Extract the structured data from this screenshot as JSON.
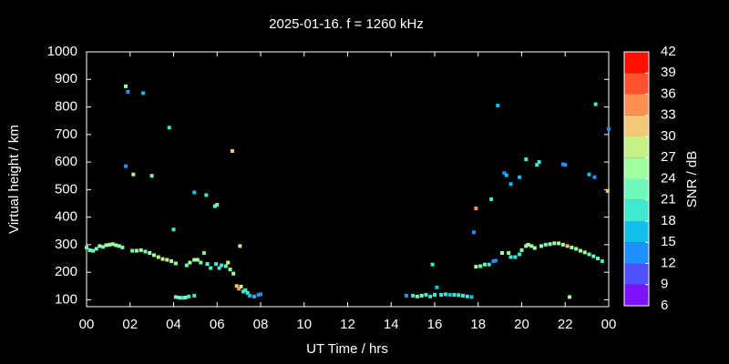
{
  "chart_data": {
    "type": "scatter",
    "title": "2025-01-16. f = 1260 kHz",
    "x_label": "UT Time / hrs",
    "y_label": "Virtual height / km",
    "xlim": [
      0,
      24
    ],
    "xticks": [
      {
        "value": 0,
        "label": "00"
      },
      {
        "value": 2,
        "label": "02"
      },
      {
        "value": 4,
        "label": "04"
      },
      {
        "value": 6,
        "label": "06"
      },
      {
        "value": 8,
        "label": "08"
      },
      10,
      12,
      14,
      16,
      18,
      20,
      22,
      {
        "value": 24,
        "label": "00"
      }
    ],
    "ylim": [
      75,
      1000
    ],
    "yticks": [
      100,
      200,
      300,
      400,
      500,
      600,
      700,
      800,
      900,
      1000
    ],
    "colorbar": {
      "label": "SNR / dB",
      "ticks": [
        6,
        9,
        12,
        15,
        18,
        21,
        24,
        27,
        30,
        33,
        36,
        39,
        42
      ],
      "colors": [
        "#8010ff",
        "#5050ff",
        "#2090ff",
        "#10c0e8",
        "#40e8d0",
        "#70f8b8",
        "#a0ffa0",
        "#c8f088",
        "#f0c878",
        "#ff9050",
        "#ff5030",
        "#ff1000"
      ]
    },
    "x": [
      0.0,
      0.15,
      0.3,
      0.45,
      0.6,
      0.75,
      0.9,
      1.05,
      1.2,
      1.35,
      1.5,
      1.65,
      1.8,
      1.9,
      2.6,
      1.8,
      2.15,
      3.0,
      3.8,
      4.0,
      2.1,
      2.3,
      2.5,
      2.7,
      2.9,
      3.1,
      3.3,
      3.5,
      3.7,
      3.9,
      4.1,
      4.1,
      4.25,
      4.4,
      4.55,
      4.7,
      4.95,
      4.6,
      4.75,
      4.95,
      5.1,
      5.25,
      5.4,
      5.55,
      5.7,
      5.95,
      6.1,
      6.2,
      6.4,
      6.5,
      6.6,
      6.75,
      6.9,
      7.0,
      7.1,
      7.2,
      7.3,
      7.4,
      7.5,
      7.7,
      7.9,
      8.0,
      4.95,
      5.5,
      5.9,
      6.0,
      6.7,
      7.05,
      14.7,
      15.0,
      15.2,
      15.4,
      15.6,
      15.8,
      15.9,
      16.1,
      16.0,
      16.3,
      16.5,
      16.7,
      16.9,
      17.1,
      17.3,
      17.5,
      17.7,
      17.8,
      17.9,
      17.9,
      18.1,
      18.3,
      18.5,
      18.7,
      18.8,
      18.6,
      18.9,
      19.2,
      19.3,
      19.5,
      19.1,
      19.4,
      19.5,
      19.7,
      19.9,
      20.0,
      20.2,
      20.3,
      20.45,
      20.6,
      19.9,
      20.2,
      20.7,
      20.8,
      20.9,
      21.1,
      21.3,
      21.5,
      21.7,
      21.9,
      22.1,
      22.3,
      22.5,
      22.7,
      22.9,
      23.1,
      23.3,
      23.5,
      23.7,
      21.9,
      22.0,
      22.2,
      23.1,
      23.35,
      23.4,
      23.95,
      24.0
    ],
    "values": [
      290,
      280,
      278,
      285,
      295,
      292,
      298,
      300,
      302,
      298,
      295,
      290,
      875,
      855,
      850,
      585,
      555,
      550,
      725,
      355,
      278,
      278,
      280,
      275,
      270,
      262,
      255,
      248,
      245,
      240,
      232,
      110,
      108,
      107,
      108,
      112,
      115,
      225,
      235,
      245,
      245,
      235,
      270,
      230,
      215,
      230,
      215,
      225,
      222,
      235,
      210,
      195,
      150,
      140,
      148,
      130,
      135,
      125,
      115,
      112,
      118,
      120,
      490,
      480,
      440,
      445,
      640,
      295,
      115,
      115,
      112,
      115,
      118,
      112,
      228,
      145,
      118,
      118,
      120,
      118,
      118,
      117,
      115,
      112,
      110,
      345,
      432,
      220,
      222,
      228,
      228,
      240,
      242,
      465,
      805,
      560,
      552,
      520,
      270,
      270,
      255,
      255,
      265,
      280,
      295,
      300,
      295,
      288,
      545,
      610,
      590,
      600,
      295,
      300,
      302,
      305,
      305,
      300,
      295,
      290,
      285,
      278,
      272,
      265,
      258,
      250,
      240,
      592,
      590,
      110,
      555,
      545,
      810,
      495,
      720
    ],
    "snr": [
      22,
      21,
      21,
      23,
      24,
      23,
      24,
      24,
      24,
      25,
      24,
      22,
      24,
      13,
      15,
      13,
      24,
      22,
      20,
      19,
      23,
      24,
      24,
      23,
      24,
      25,
      27,
      28,
      27,
      26,
      25,
      22,
      21,
      20,
      21,
      19,
      20,
      22,
      24,
      26,
      25,
      23,
      22,
      21,
      20,
      18,
      19,
      19,
      23,
      28,
      25,
      24,
      30,
      34,
      27,
      19,
      20,
      18,
      16,
      15,
      13,
      12,
      16,
      20,
      22,
      22,
      31,
      28,
      14,
      20,
      22,
      21,
      20,
      19,
      19,
      17,
      20,
      19,
      18,
      17,
      18,
      19,
      18,
      20,
      16,
      14,
      33,
      24,
      23,
      22,
      20,
      12,
      13,
      20,
      17,
      13,
      17,
      15,
      24,
      24,
      18,
      18,
      18,
      21,
      24,
      26,
      25,
      24,
      15,
      18,
      18,
      18,
      24,
      23,
      25,
      26,
      25,
      24,
      31,
      26,
      25,
      24,
      24,
      23,
      22,
      21,
      18,
      13,
      14,
      24,
      17,
      14,
      20,
      32,
      14
    ]
  }
}
